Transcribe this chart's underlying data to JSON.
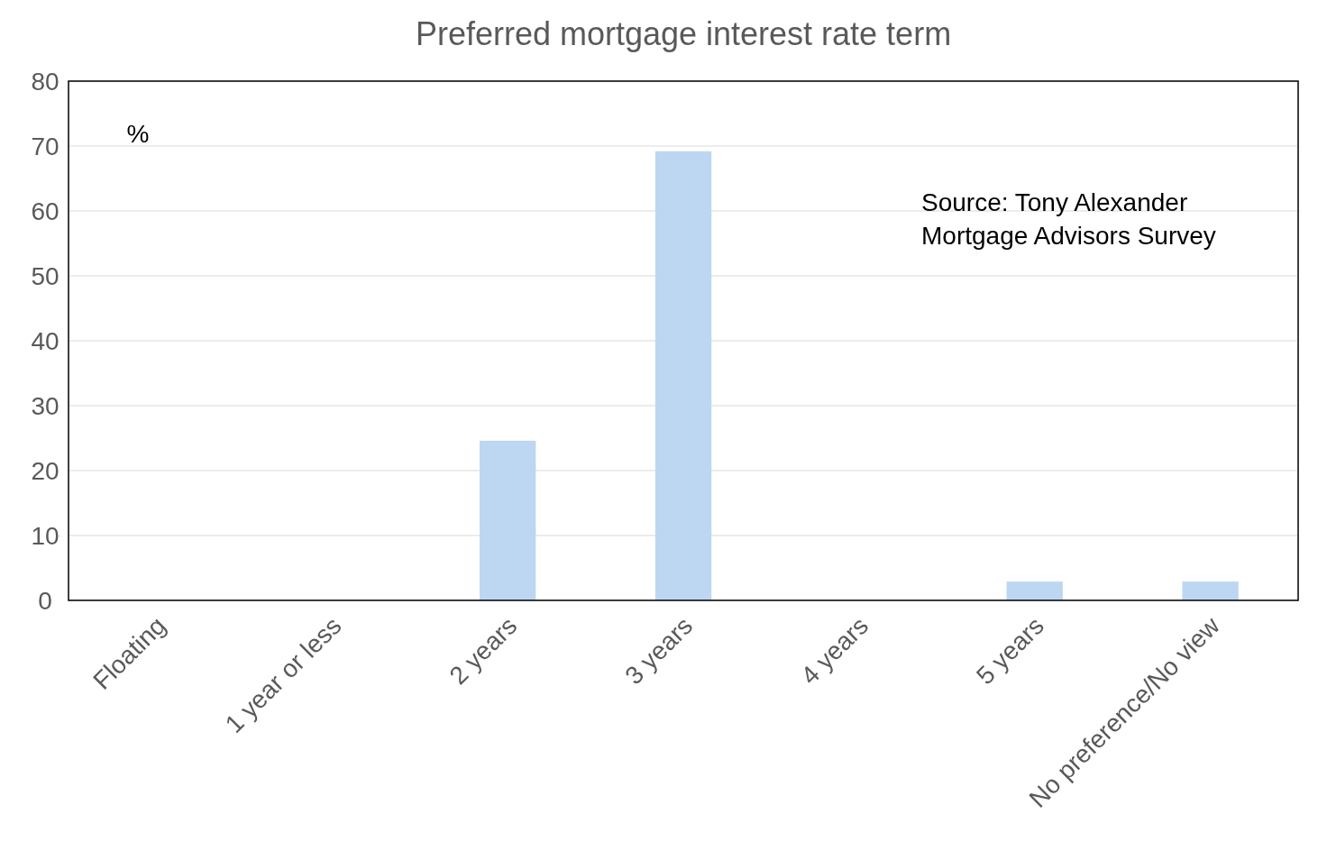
{
  "chart_data": {
    "type": "bar",
    "title": "Preferred mortgage interest rate term",
    "ylabel": "%",
    "categories": [
      "Floating",
      "1 year or less",
      "2 years",
      "3 years",
      "4 years",
      "5 years",
      "No preference/No view"
    ],
    "values": [
      0,
      0,
      24.6,
      69.2,
      0,
      2.9,
      2.9
    ],
    "color": "#bdd7f3",
    "ylim": [
      0,
      80
    ],
    "yticks": [
      0,
      10,
      20,
      30,
      40,
      50,
      60,
      70,
      80
    ],
    "grid": "y",
    "annotations": [
      "Source: Tony Alexander Mortgage Advisors Survey"
    ]
  }
}
